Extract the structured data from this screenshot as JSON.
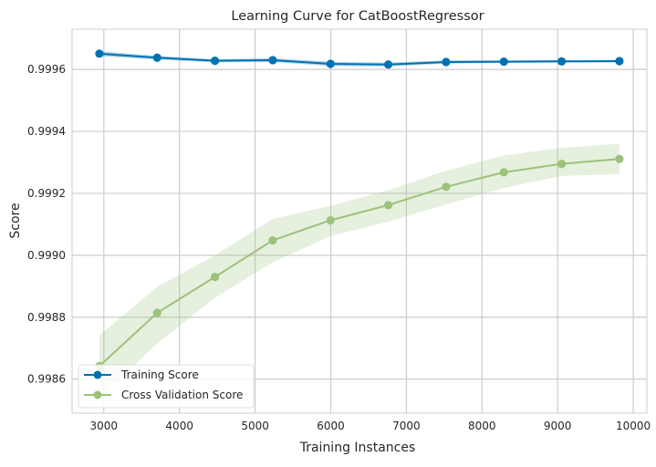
{
  "chart_data": {
    "type": "line",
    "title": "Learning Curve for CatBoostRegressor",
    "xlabel": "Training Instances",
    "ylabel": "Score",
    "xlim": [
      2580,
      10180
    ],
    "ylim": [
      0.99849,
      0.99973
    ],
    "xticks": [
      3000,
      4000,
      5000,
      6000,
      7000,
      8000,
      9000,
      10000
    ],
    "xtick_labels": [
      "3000",
      "4000",
      "5000",
      "6000",
      "7000",
      "8000",
      "9000",
      "10000"
    ],
    "yticks": [
      0.9986,
      0.9988,
      0.999,
      0.9992,
      0.9994,
      0.9996
    ],
    "ytick_labels": [
      "0.9986",
      "0.9988",
      "0.9990",
      "0.9992",
      "0.9994",
      "0.9996"
    ],
    "grid": true,
    "legend_position": "lower-left",
    "series": [
      {
        "name": "Training Score",
        "color": "#0072b2",
        "band_color": "#0072b2",
        "x": [
          2941,
          3705,
          4469,
          5233,
          5997,
          6761,
          7525,
          8289,
          9053,
          9817
        ],
        "values": [
          0.999651,
          0.999638,
          0.999628,
          0.99963,
          0.999618,
          0.999616,
          0.999624,
          0.999625,
          0.999626,
          0.999627
        ],
        "band_low": [
          0.999643,
          0.999632,
          0.999623,
          0.999624,
          0.999611,
          0.99961,
          0.999619,
          0.999621,
          0.999622,
          0.999623
        ],
        "band_high": [
          0.999659,
          0.999644,
          0.999633,
          0.999636,
          0.999625,
          0.999622,
          0.999629,
          0.999629,
          0.99963,
          0.999631
        ]
      },
      {
        "name": "Cross Validation Score",
        "color": "#9cc27a",
        "band_color": "#9cc27a",
        "x": [
          2941,
          3705,
          4469,
          5233,
          5997,
          6761,
          7525,
          8289,
          9053,
          9817
        ],
        "values": [
          0.998642,
          0.998814,
          0.99893,
          0.999048,
          0.999113,
          0.999162,
          0.999221,
          0.999268,
          0.999295,
          0.999311
        ],
        "band_low": [
          0.998538,
          0.998715,
          0.998863,
          0.998977,
          0.999062,
          0.999108,
          0.999164,
          0.999217,
          0.999256,
          0.999262
        ],
        "band_high": [
          0.998742,
          0.998898,
          0.999,
          0.999117,
          0.99916,
          0.99921,
          0.999273,
          0.999322,
          0.999347,
          0.99936
        ]
      }
    ]
  }
}
